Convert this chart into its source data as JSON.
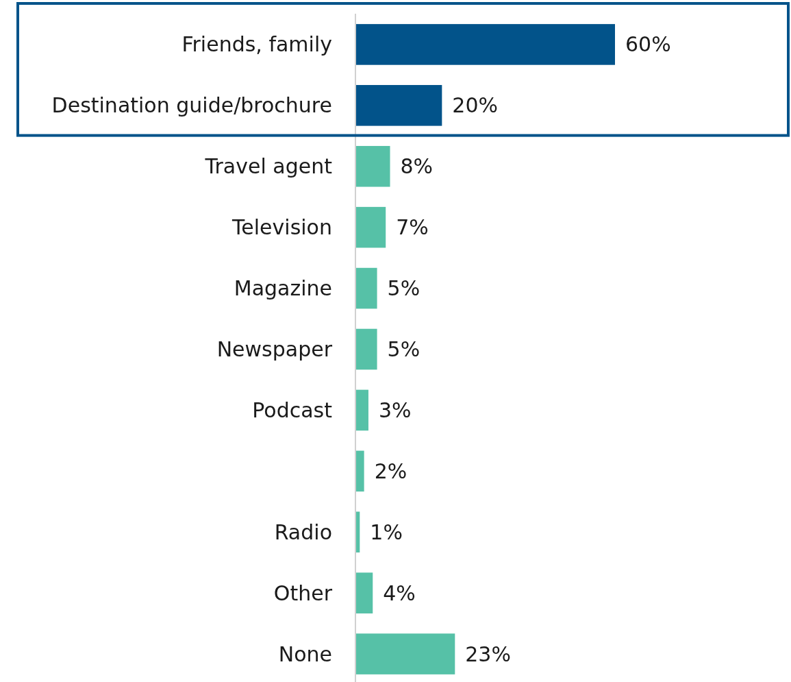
{
  "chart_data": {
    "type": "bar",
    "orientation": "horizontal",
    "categories": [
      "Friends, family",
      "Destination guide/brochure",
      "Travel agent",
      "Television",
      "Magazine",
      "Newspaper",
      "Podcast",
      null,
      "Radio",
      "Other",
      "None"
    ],
    "values": [
      60,
      20,
      8,
      7,
      5,
      5,
      3,
      2,
      1,
      4,
      23
    ],
    "value_labels": [
      "60%",
      "20%",
      "8%",
      "7%",
      "5%",
      "5%",
      "3%",
      "2%",
      "1%",
      "4%",
      "23%"
    ],
    "colors": [
      "#02538a",
      "#02538a",
      "#56c1a7",
      "#56c1a7",
      "#56c1a7",
      "#56c1a7",
      "#56c1a7",
      "#56c1a7",
      "#56c1a7",
      "#56c1a7",
      "#56c1a7"
    ]
  }
}
